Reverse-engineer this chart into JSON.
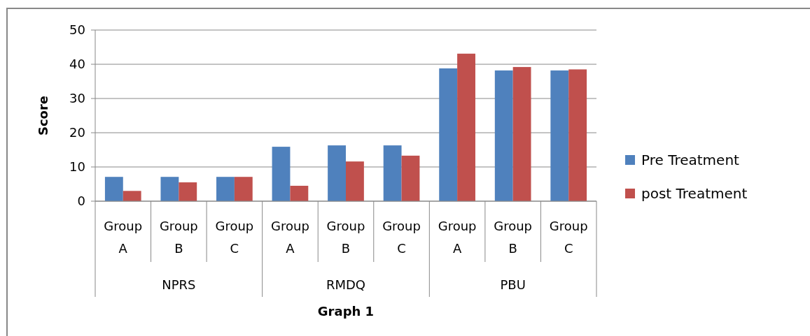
{
  "chart_data": {
    "type": "bar",
    "xlabel": "Graph 1",
    "ylabel": "Score",
    "categories": [
      "Group A",
      "Group B",
      "Group C",
      "Group A",
      "Group B",
      "Group C",
      "Group A",
      "Group B",
      "Group C"
    ],
    "annotations": [
      "NPRS",
      "RMDQ",
      "PBU"
    ],
    "series": [
      {
        "name": "Pre Treatment",
        "color": "#4f81bd",
        "values": [
          7.1,
          7.1,
          7.1,
          15.9,
          16.3,
          16.3,
          38.8,
          38.2,
          38.2
        ]
      },
      {
        "name": "post Treatment",
        "color": "#c0504d",
        "values": [
          3.0,
          5.5,
          7.1,
          4.5,
          11.6,
          13.3,
          43.1,
          39.2,
          38.5
        ]
      }
    ],
    "ylim": [
      0,
      50
    ],
    "yticks": [
      0,
      10,
      20,
      30,
      40,
      50
    ],
    "grid": "y",
    "legend": "right"
  }
}
